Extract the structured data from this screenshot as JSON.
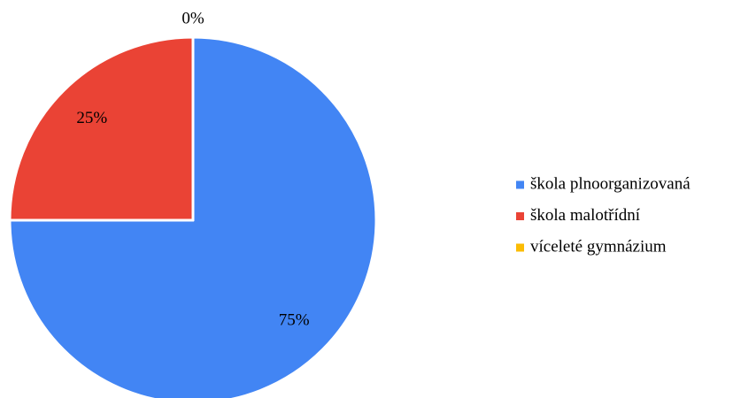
{
  "chart_data": {
    "type": "pie",
    "categories": [
      "škola plnoorganizovaná",
      "škola malotřídní",
      "víceleté gymnázium"
    ],
    "values": [
      75,
      25,
      0
    ],
    "value_labels": [
      "75%",
      "25%",
      "0%"
    ],
    "colors": [
      "#4285f4",
      "#ea4335",
      "#fbbc04"
    ],
    "legend": "right"
  }
}
